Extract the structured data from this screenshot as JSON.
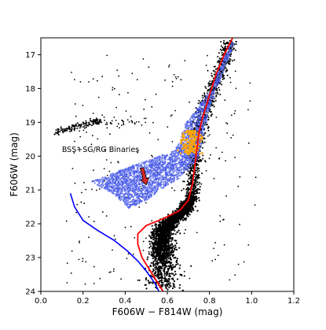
{
  "chart_data": {
    "type": "scatter",
    "title": "",
    "xlabel": "F606W − F814W (mag)",
    "ylabel": "F606W (mag)",
    "xlim": [
      0.0,
      1.2
    ],
    "ylim": [
      24.0,
      16.5
    ],
    "y_inverted": true,
    "x_ticks": [
      0.0,
      0.2,
      0.4,
      0.6,
      0.8,
      1.0,
      1.2
    ],
    "x_tick_labels": [
      "0.0",
      "0.2",
      "0.4",
      "0.6",
      "0.8",
      "1.0",
      "1.2"
    ],
    "y_ticks": [
      17,
      18,
      19,
      20,
      21,
      22,
      23,
      24
    ],
    "y_tick_labels": [
      "17",
      "18",
      "19",
      "20",
      "21",
      "22",
      "23",
      "24"
    ],
    "grid": false,
    "annotation": {
      "text": "BSS+SG/RG Binaries",
      "arrow_tail": [
        0.48,
        20.35
      ],
      "arrow_head": [
        0.5,
        20.85
      ],
      "arrow_color": "#d62728"
    },
    "series": [
      {
        "kind": "points",
        "color": "#000000",
        "components": [
          {
            "label_hint": "main sequence",
            "points": [
              [
                0.56,
                24.0
              ],
              [
                0.58,
                23.5
              ],
              [
                0.58,
                23.0
              ],
              [
                0.57,
                22.6
              ],
              [
                0.58,
                22.2
              ],
              [
                0.62,
                21.9
              ],
              [
                0.68,
                21.6
              ],
              [
                0.72,
                21.2
              ]
            ]
          },
          {
            "label_hint": "subgiant/red giant branch",
            "points": [
              [
                0.72,
                21.2
              ],
              [
                0.72,
                20.6
              ],
              [
                0.73,
                20.0
              ],
              [
                0.75,
                19.2
              ],
              [
                0.78,
                18.6
              ],
              [
                0.82,
                18.0
              ],
              [
                0.86,
                17.3
              ],
              [
                0.9,
                16.6
              ]
            ]
          },
          {
            "label_hint": "horizontal branch",
            "points": [
              [
                0.07,
                19.3
              ],
              [
                0.15,
                19.15
              ],
              [
                0.25,
                19.0
              ],
              [
                0.28,
                18.95
              ]
            ]
          }
        ]
      },
      {
        "kind": "points",
        "color": "#4a5ce8",
        "name_hint": "simulated binaries",
        "polygon": [
          [
            0.24,
            20.75
          ],
          [
            0.45,
            20.25
          ],
          [
            0.63,
            19.85
          ],
          [
            0.66,
            19.6
          ],
          [
            0.68,
            19.1
          ],
          [
            0.8,
            18.1
          ],
          [
            0.9,
            16.6
          ],
          [
            0.92,
            16.6
          ],
          [
            0.8,
            18.6
          ],
          [
            0.75,
            20.0
          ],
          [
            0.7,
            20.4
          ],
          [
            0.66,
            20.65
          ],
          [
            0.58,
            20.95
          ],
          [
            0.5,
            21.3
          ],
          [
            0.42,
            21.55
          ],
          [
            0.36,
            21.2
          ]
        ]
      },
      {
        "kind": "points",
        "color": "#ffa500",
        "name_hint": "highlighted stars",
        "center": [
          0.71,
          19.6
        ],
        "spread": [
          0.025,
          0.35
        ]
      },
      {
        "kind": "line",
        "color": "#ff0000",
        "name_hint": "isochrone",
        "points": [
          [
            0.58,
            24.0
          ],
          [
            0.53,
            23.5
          ],
          [
            0.48,
            23.0
          ],
          [
            0.46,
            22.6
          ],
          [
            0.46,
            22.3
          ],
          [
            0.5,
            22.05
          ],
          [
            0.58,
            21.85
          ],
          [
            0.66,
            21.6
          ],
          [
            0.7,
            21.3
          ],
          [
            0.72,
            20.8
          ],
          [
            0.73,
            20.3
          ],
          [
            0.74,
            19.8
          ],
          [
            0.75,
            19.3
          ],
          [
            0.77,
            18.8
          ],
          [
            0.8,
            18.2
          ],
          [
            0.83,
            17.6
          ],
          [
            0.87,
            17.0
          ],
          [
            0.91,
            16.5
          ]
        ]
      },
      {
        "kind": "line",
        "color": "#0000ff",
        "name_hint": "ZAMS",
        "points": [
          [
            0.14,
            21.1
          ],
          [
            0.16,
            21.5
          ],
          [
            0.2,
            21.9
          ],
          [
            0.27,
            22.2
          ],
          [
            0.35,
            22.5
          ],
          [
            0.41,
            22.8
          ],
          [
            0.46,
            23.1
          ],
          [
            0.5,
            23.4
          ],
          [
            0.54,
            23.75
          ],
          [
            0.56,
            24.0
          ]
        ]
      }
    ]
  }
}
